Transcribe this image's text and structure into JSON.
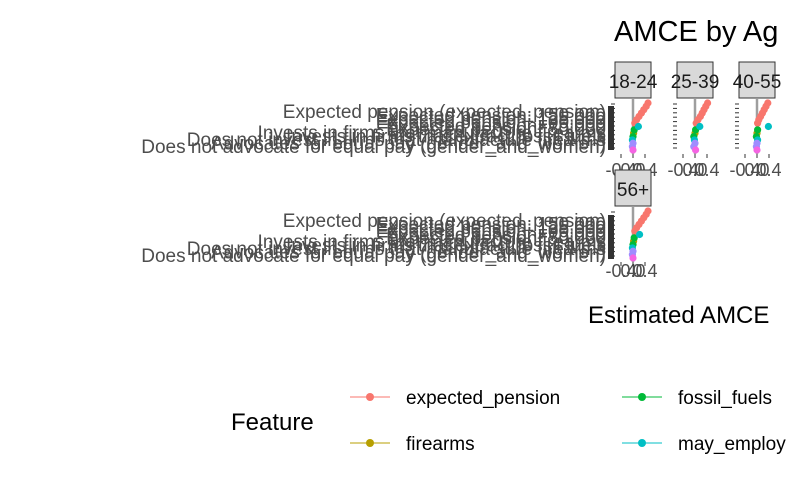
{
  "chart_data": {
    "type": "scatter",
    "title": "AMCE by Ag",
    "xlabel": "Estimated AMCE",
    "ylabel": "",
    "facets": [
      {
        "label": "18-24",
        "xlim": [
          -0.6,
          0.6
        ]
      },
      {
        "label": "25-39",
        "xlim": [
          -0.6,
          0.6
        ]
      },
      {
        "label": "40-55",
        "xlim": [
          -0.6,
          0.6
        ]
      },
      {
        "label": "56+",
        "xlim": [
          -0.6,
          0.6
        ]
      }
    ],
    "x_tick_labels": [
      "-0.4",
      "0.0",
      "0.4"
    ],
    "x_ticks": [
      -0.4,
      0.0,
      0.4
    ],
    "y_tick_labels": [
      "Expected pension (expected_pension)",
      "Expected pension: 150,000",
      "Expected pension: 125,000",
      "Expected pension: 100,000",
      "Expected pension: 75,000",
      "Expected pension: 50,000",
      "Invests in firms that manufacture firearms",
      "Invests in firms that extract fossil fuels",
      "Does not invest in firms that manufacture firearms",
      "Advocates for equal pay (gender_and_women)",
      "Does not advocate for equal pay (gender_and_women)"
    ],
    "legend": {
      "title": "Feature",
      "position": "bottom",
      "entries": [
        {
          "name": "expected_pension",
          "color": "#F8766D"
        },
        {
          "name": "fossil_fuels",
          "color": "#00BA38"
        },
        {
          "name": "firearms",
          "color": "#B79F00"
        },
        {
          "name": "may_employ",
          "color": "#00BFC4"
        }
      ]
    },
    "extra_colors": {
      "gender": "#9F8CFF",
      "other": "#F564E3",
      "ref_line": "#9E9E9E",
      "strip": "#D9D9D9"
    },
    "points": [
      {
        "facet": "18-24",
        "feature": "expected_pension",
        "y": 1,
        "x": 0.5
      },
      {
        "facet": "18-24",
        "feature": "expected_pension",
        "y": 2,
        "x": 0.44
      },
      {
        "facet": "18-24",
        "feature": "expected_pension",
        "y": 3,
        "x": 0.36
      },
      {
        "facet": "18-24",
        "feature": "expected_pension",
        "y": 4,
        "x": 0.28
      },
      {
        "facet": "18-24",
        "feature": "expected_pension",
        "y": 5,
        "x": 0.2
      },
      {
        "facet": "18-24",
        "feature": "expected_pension",
        "y": 6,
        "x": 0.12
      },
      {
        "facet": "18-24",
        "feature": "expected_pension",
        "y": 7,
        "x": 0.06
      },
      {
        "facet": "18-24",
        "feature": "firearms",
        "y": 10,
        "x": 0.02
      },
      {
        "facet": "18-24",
        "feature": "fossil_fuels",
        "y": 9,
        "x": 0.04
      },
      {
        "facet": "18-24",
        "feature": "fossil_fuels",
        "y": 11,
        "x": 0.0
      },
      {
        "facet": "18-24",
        "feature": "may_employ",
        "y": 8,
        "x": 0.18
      },
      {
        "facet": "18-24",
        "feature": "may_employ",
        "y": 12,
        "x": -0.02
      },
      {
        "facet": "18-24",
        "feature": "gender",
        "y": 13,
        "x": 0.0
      },
      {
        "facet": "18-24",
        "feature": "gender",
        "y": 14,
        "x": -0.02
      },
      {
        "facet": "18-24",
        "feature": "other",
        "y": 15,
        "x": 0.0
      },
      {
        "facet": "25-39",
        "feature": "expected_pension",
        "y": 1,
        "x": 0.42
      },
      {
        "facet": "25-39",
        "feature": "expected_pension",
        "y": 2,
        "x": 0.36
      },
      {
        "facet": "25-39",
        "feature": "expected_pension",
        "y": 3,
        "x": 0.3
      },
      {
        "facet": "25-39",
        "feature": "expected_pension",
        "y": 4,
        "x": 0.24
      },
      {
        "facet": "25-39",
        "feature": "expected_pension",
        "y": 5,
        "x": 0.18
      },
      {
        "facet": "25-39",
        "feature": "expected_pension",
        "y": 6,
        "x": 0.1
      },
      {
        "facet": "25-39",
        "feature": "expected_pension",
        "y": 7,
        "x": 0.04
      },
      {
        "facet": "25-39",
        "feature": "firearms",
        "y": 10,
        "x": 0.0
      },
      {
        "facet": "25-39",
        "feature": "fossil_fuels",
        "y": 9,
        "x": 0.02
      },
      {
        "facet": "25-39",
        "feature": "fossil_fuels",
        "y": 11,
        "x": -0.04
      },
      {
        "facet": "25-39",
        "feature": "may_employ",
        "y": 8,
        "x": 0.16
      },
      {
        "facet": "25-39",
        "feature": "may_employ",
        "y": 12,
        "x": -0.02
      },
      {
        "facet": "25-39",
        "feature": "gender",
        "y": 13,
        "x": 0.0
      },
      {
        "facet": "25-39",
        "feature": "gender",
        "y": 14,
        "x": -0.04
      },
      {
        "facet": "25-39",
        "feature": "other",
        "y": 15,
        "x": 0.02
      },
      {
        "facet": "40-55",
        "feature": "expected_pension",
        "y": 1,
        "x": 0.36
      },
      {
        "facet": "40-55",
        "feature": "expected_pension",
        "y": 2,
        "x": 0.3
      },
      {
        "facet": "40-55",
        "feature": "expected_pension",
        "y": 3,
        "x": 0.24
      },
      {
        "facet": "40-55",
        "feature": "expected_pension",
        "y": 4,
        "x": 0.18
      },
      {
        "facet": "40-55",
        "feature": "expected_pension",
        "y": 5,
        "x": 0.12
      },
      {
        "facet": "40-55",
        "feature": "expected_pension",
        "y": 6,
        "x": 0.06
      },
      {
        "facet": "40-55",
        "feature": "expected_pension",
        "y": 7,
        "x": 0.02
      },
      {
        "facet": "40-55",
        "feature": "firearms",
        "y": 10,
        "x": 0.0
      },
      {
        "facet": "40-55",
        "feature": "fossil_fuels",
        "y": 9,
        "x": 0.02
      },
      {
        "facet": "40-55",
        "feature": "fossil_fuels",
        "y": 11,
        "x": -0.02
      },
      {
        "facet": "40-55",
        "feature": "may_employ",
        "y": 8,
        "x": 0.38
      },
      {
        "facet": "40-55",
        "feature": "may_employ",
        "y": 12,
        "x": 0.02
      },
      {
        "facet": "40-55",
        "feature": "gender",
        "y": 13,
        "x": 0.0
      },
      {
        "facet": "40-55",
        "feature": "gender",
        "y": 14,
        "x": -0.02
      },
      {
        "facet": "40-55",
        "feature": "other",
        "y": 15,
        "x": 0.0
      },
      {
        "facet": "56+",
        "feature": "expected_pension",
        "y": 1,
        "x": 0.5
      },
      {
        "facet": "56+",
        "feature": "expected_pension",
        "y": 2,
        "x": 0.44
      },
      {
        "facet": "56+",
        "feature": "expected_pension",
        "y": 3,
        "x": 0.36
      },
      {
        "facet": "56+",
        "feature": "expected_pension",
        "y": 4,
        "x": 0.28
      },
      {
        "facet": "56+",
        "feature": "expected_pension",
        "y": 5,
        "x": 0.2
      },
      {
        "facet": "56+",
        "feature": "expected_pension",
        "y": 6,
        "x": 0.12
      },
      {
        "facet": "56+",
        "feature": "expected_pension",
        "y": 7,
        "x": 0.06
      },
      {
        "facet": "56+",
        "feature": "firearms",
        "y": 10,
        "x": 0.02
      },
      {
        "facet": "56+",
        "feature": "fossil_fuels",
        "y": 9,
        "x": 0.04
      },
      {
        "facet": "56+",
        "feature": "fossil_fuels",
        "y": 11,
        "x": 0.0
      },
      {
        "facet": "56+",
        "feature": "may_employ",
        "y": 8,
        "x": 0.22
      },
      {
        "facet": "56+",
        "feature": "may_employ",
        "y": 12,
        "x": -0.02
      },
      {
        "facet": "56+",
        "feature": "gender",
        "y": 13,
        "x": 0.0
      },
      {
        "facet": "56+",
        "feature": "gender",
        "y": 14,
        "x": -0.02
      },
      {
        "facet": "56+",
        "feature": "other",
        "y": 15,
        "x": 0.0
      }
    ]
  }
}
